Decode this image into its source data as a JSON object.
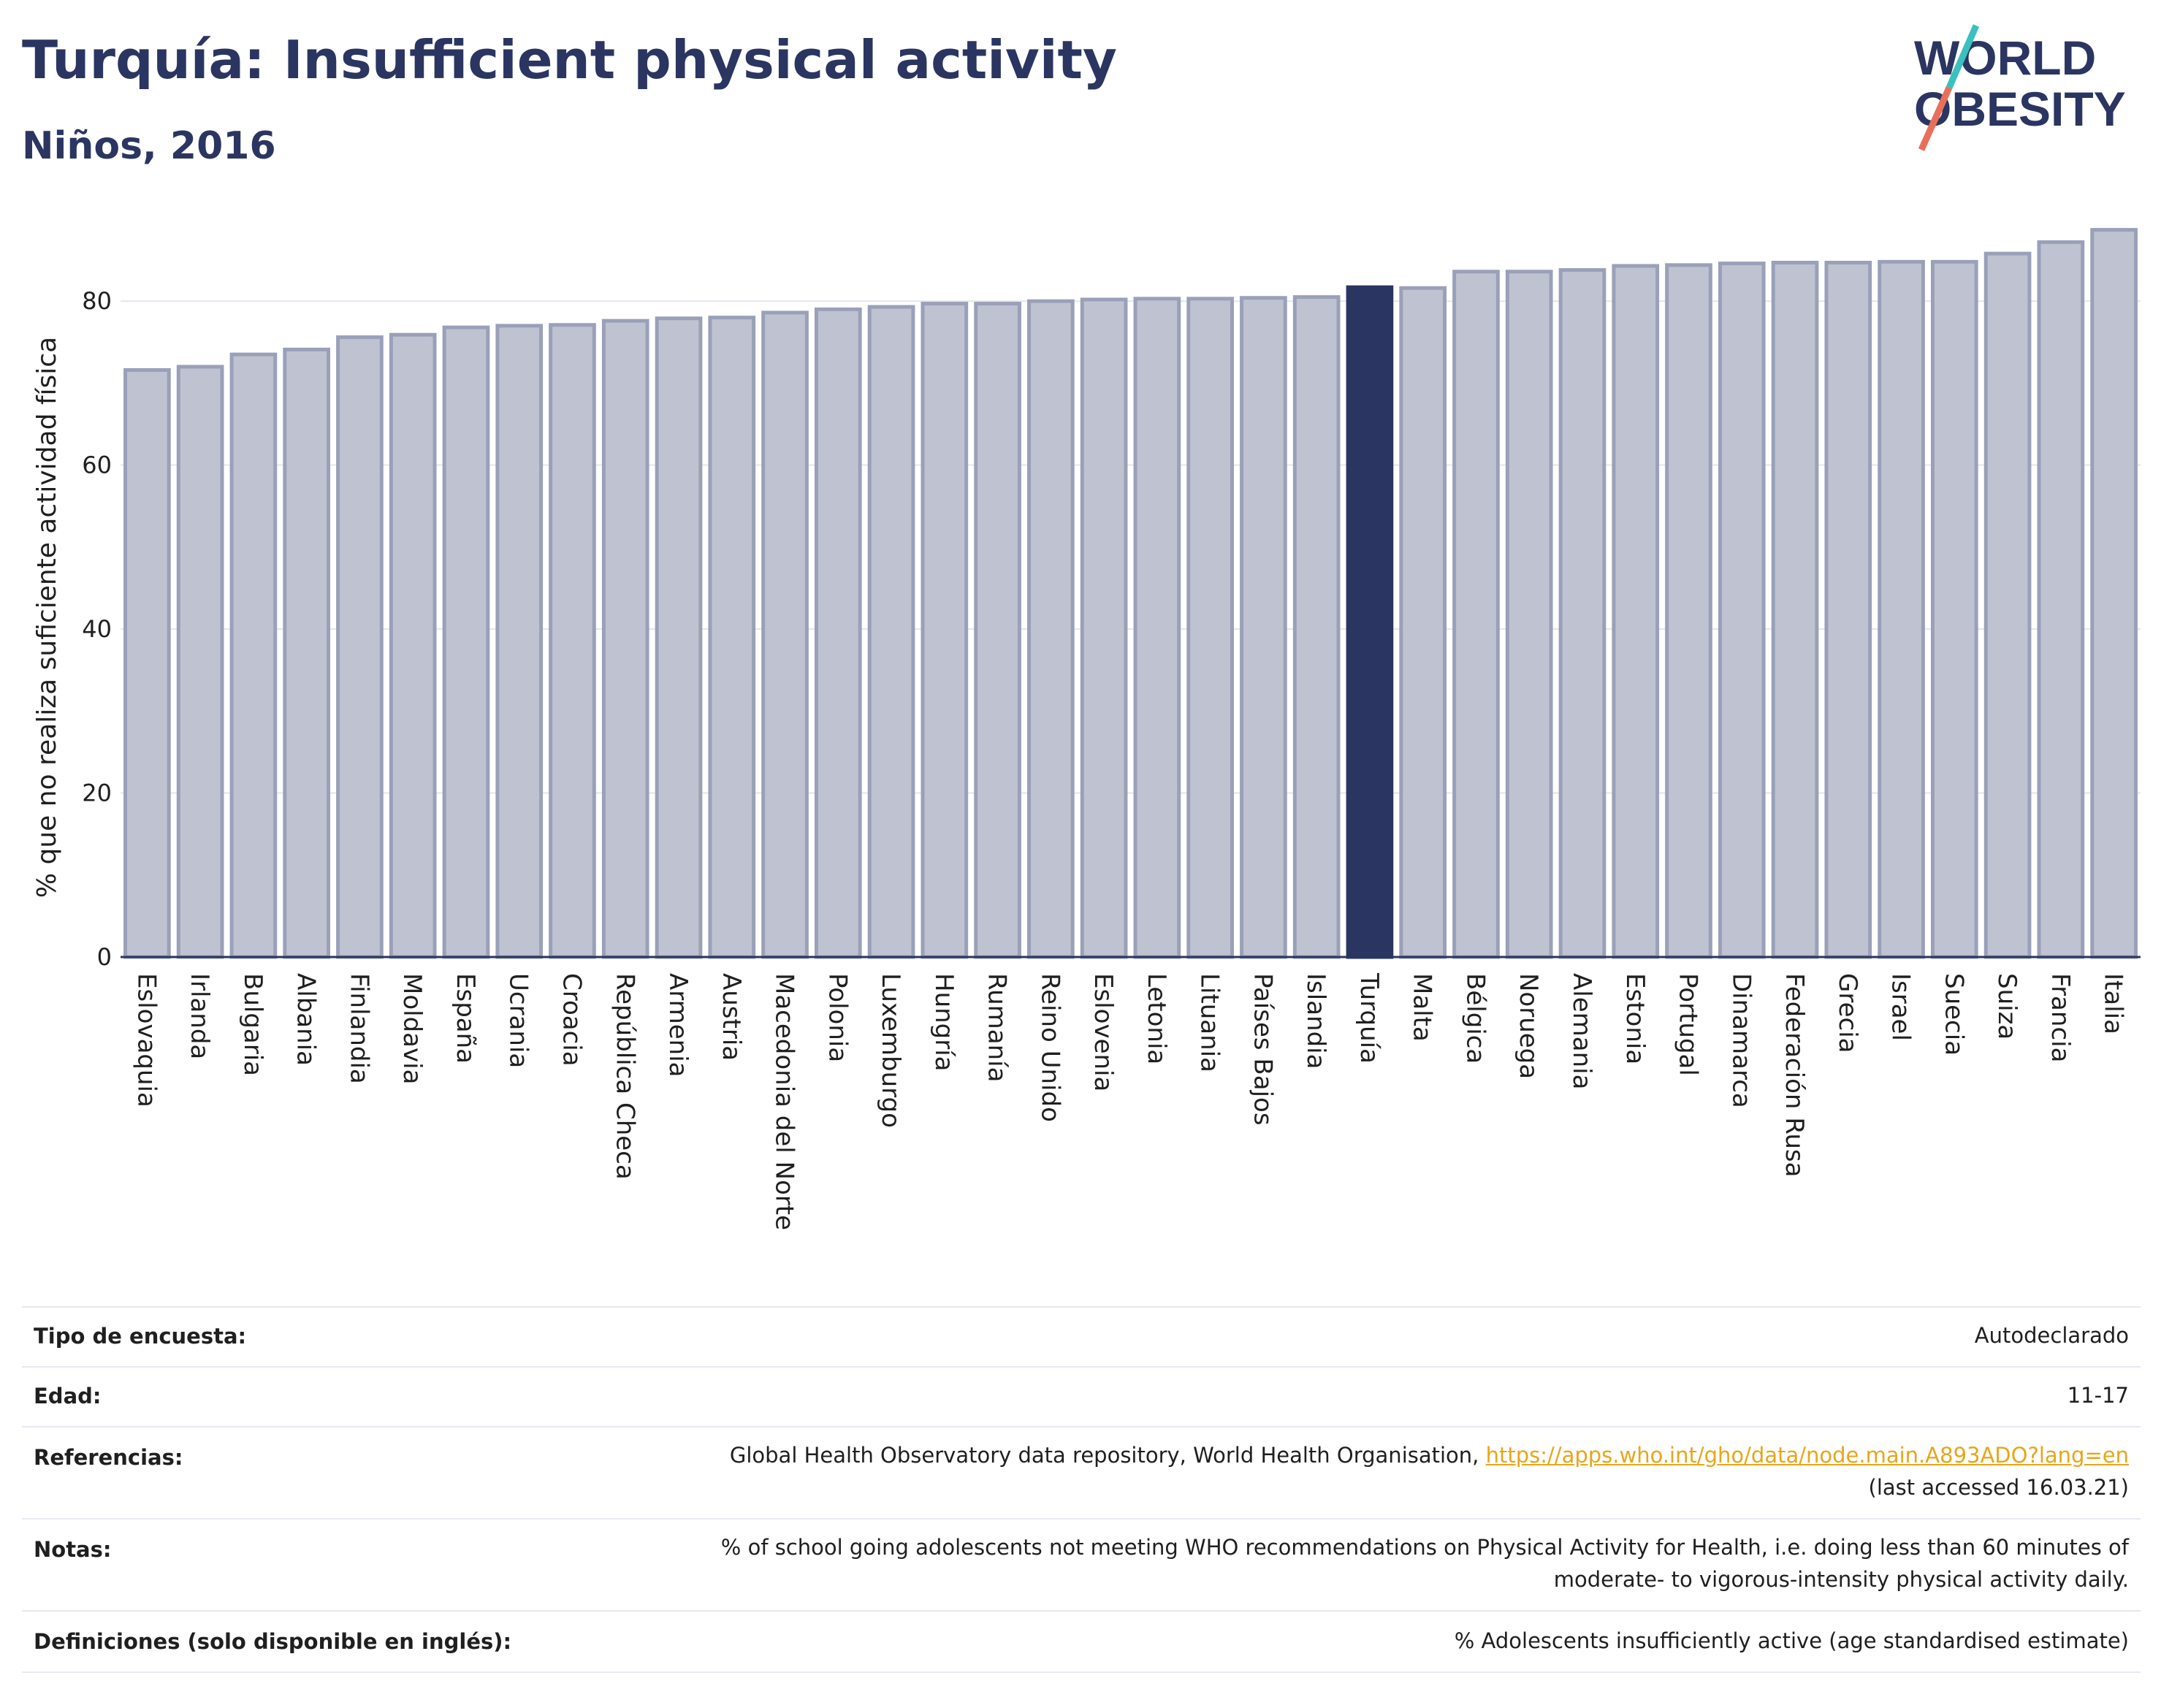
{
  "header": {
    "title": "Turquía: Insufficient physical activity",
    "subtitle": "Niños, 2016",
    "logo_line1": "WORLD",
    "logo_line2": "OBESITY"
  },
  "colors": {
    "highlight": "#2b3561",
    "bar": "#bfc3d1",
    "bar_stroke": "#9aa0b8",
    "logo_teal": "#3cbfbf",
    "logo_coral": "#e8705a"
  },
  "chart_data": {
    "type": "bar",
    "title": "Turquía: Insufficient physical activity",
    "subtitle": "Niños, 2016",
    "ylabel": "% que no realiza suficiente actividad física",
    "xlabel": "",
    "ylim": [
      0,
      90
    ],
    "yticks": [
      0,
      20,
      40,
      60,
      80
    ],
    "grid": true,
    "highlight": "Turquía",
    "categories": [
      "Eslovaquia",
      "Irlanda",
      "Bulgaria",
      "Albania",
      "Finlandia",
      "Moldavia",
      "España",
      "Ucrania",
      "Croacia",
      "República Checa",
      "Armenia",
      "Austria",
      "Macedonia del Norte",
      "Polonia",
      "Luxemburgo",
      "Hungría",
      "Rumanía",
      "Reino Unido",
      "Eslovenia",
      "Letonia",
      "Lituania",
      "Países Bajos",
      "Islandia",
      "Turquía",
      "Malta",
      "Bélgica",
      "Noruega",
      "Alemania",
      "Estonia",
      "Portugal",
      "Dinamarca",
      "Federación Rusa",
      "Grecia",
      "Israel",
      "Suecia",
      "Suiza",
      "Francia",
      "Italia"
    ],
    "values": [
      71.6,
      72.0,
      73.5,
      74.1,
      75.6,
      75.9,
      76.8,
      77.0,
      77.1,
      77.6,
      77.9,
      78.0,
      78.6,
      79.0,
      79.3,
      79.7,
      79.7,
      80.0,
      80.2,
      80.3,
      80.3,
      80.4,
      80.5,
      81.7,
      81.6,
      83.6,
      83.6,
      83.8,
      84.3,
      84.4,
      84.6,
      84.7,
      84.7,
      84.8,
      84.8,
      85.8,
      87.2,
      88.7
    ]
  },
  "info": {
    "survey_label": "Tipo de encuesta:",
    "survey_value": "Autodeclarado",
    "age_label": "Edad:",
    "age_value": "11-17",
    "refs_label": "Referencias:",
    "refs_text": "Global Health Observatory data repository, World Health Organisation,",
    "refs_link": "https://apps.who.int/gho/data/node.main.A893ADO?lang=en",
    "refs_accessed": "(last accessed 16.03.21)",
    "notes_label": "Notas:",
    "notes_line1": "% of school going adolescents not meeting WHO recommendations on Physical Activity for Health, i.e. doing less than 60 minutes of",
    "notes_line2": "moderate- to vigorous-intensity physical activity daily.",
    "defs_label": "Definiciones (solo disponible en inglés):",
    "defs_value": "% Adolescents insufficiently active (age standardised estimate)"
  }
}
